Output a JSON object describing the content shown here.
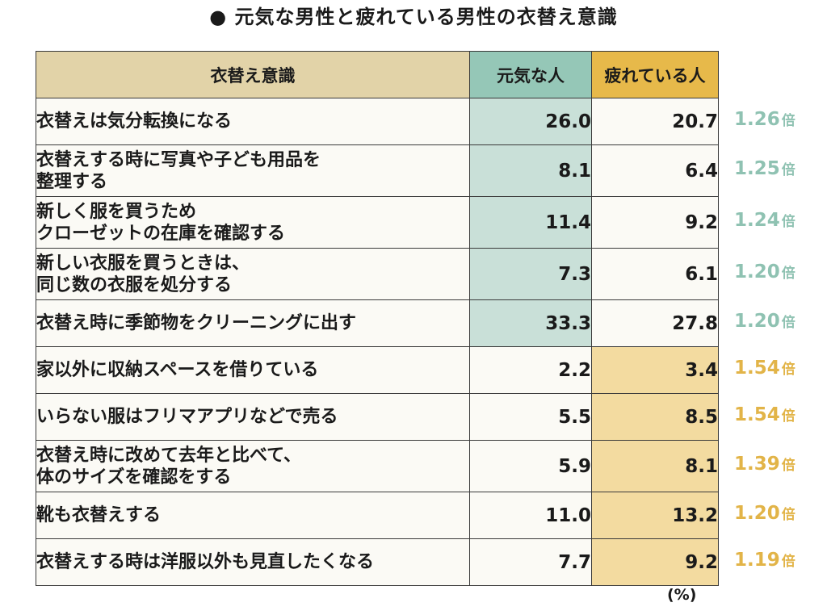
{
  "title": "● 元気な男性と疲れている男性の衣替え意識",
  "header": {
    "item": "衣替え意識",
    "col_a": "元気な人",
    "col_b": "疲れている人"
  },
  "unit": "(%)",
  "ratio_suffix": "倍",
  "colors": {
    "header_item": "#e2d3a8",
    "header_a": "#95c7b7",
    "header_b": "#e7b94a",
    "highlight_a": "#c9e0d8",
    "highlight_b": "#f3dba0",
    "ratio_a": "#8fc2b2",
    "ratio_b": "#e2b448"
  },
  "rows": [
    {
      "label": "衣替えは気分転換になる",
      "a": "26.0",
      "b": "20.7",
      "ratio": "1.26",
      "higher": "a"
    },
    {
      "label": "衣替えする時に写真や子ども用品を\n整理する",
      "a": "8.1",
      "b": "6.4",
      "ratio": "1.25",
      "higher": "a"
    },
    {
      "label": "新しく服を買うため\nクローゼットの在庫を確認する",
      "a": "11.4",
      "b": "9.2",
      "ratio": "1.24",
      "higher": "a"
    },
    {
      "label": "新しい衣服を買うときは、\n同じ数の衣服を処分する",
      "a": "7.3",
      "b": "6.1",
      "ratio": "1.20",
      "higher": "a"
    },
    {
      "label": "衣替え時に季節物をクリーニングに出す",
      "a": "33.3",
      "b": "27.8",
      "ratio": "1.20",
      "higher": "a"
    },
    {
      "label": "家以外に収納スペースを借りている",
      "a": "2.2",
      "b": "3.4",
      "ratio": "1.54",
      "higher": "b"
    },
    {
      "label": "いらない服はフリマアプリなどで売る",
      "a": "5.5",
      "b": "8.5",
      "ratio": "1.54",
      "higher": "b"
    },
    {
      "label": "衣替え時に改めて去年と比べて、\n体のサイズを確認をする",
      "a": "5.9",
      "b": "8.1",
      "ratio": "1.39",
      "higher": "b"
    },
    {
      "label": "靴も衣替えする",
      "a": "11.0",
      "b": "13.2",
      "ratio": "1.20",
      "higher": "b"
    },
    {
      "label": "衣替えする時は洋服以外も見直したくなる",
      "a": "7.7",
      "b": "9.2",
      "ratio": "1.19",
      "higher": "b"
    }
  ],
  "chart_data": {
    "type": "table",
    "title": "● 元気な男性と疲れている男性の衣替え意識",
    "columns": [
      "衣替え意識",
      "元気な人",
      "疲れている人"
    ],
    "unit": "(%)",
    "categories": [
      "衣替えは気分転換になる",
      "衣替えする時に写真や子ども用品を整理する",
      "新しく服を買うためクローゼットの在庫を確認する",
      "新しい衣服を買うときは、同じ数の衣服を処分する",
      "衣替え時に季節物をクリーニングに出す",
      "家以外に収納スペースを借りている",
      "いらない服はフリマアプリなどで売る",
      "衣替え時に改めて去年と比べて、体のサイズを確認をする",
      "靴も衣替えする",
      "衣替えする時は洋服以外も見直したくなる"
    ],
    "series": [
      {
        "name": "元気な人",
        "values": [
          26.0,
          8.1,
          11.4,
          7.3,
          33.3,
          2.2,
          5.5,
          5.9,
          11.0,
          7.7
        ]
      },
      {
        "name": "疲れている人",
        "values": [
          20.7,
          6.4,
          9.2,
          6.1,
          27.8,
          3.4,
          8.5,
          8.1,
          13.2,
          9.2
        ]
      }
    ],
    "ratios": [
      1.26,
      1.25,
      1.24,
      1.2,
      1.2,
      1.54,
      1.54,
      1.39,
      1.2,
      1.19
    ]
  }
}
